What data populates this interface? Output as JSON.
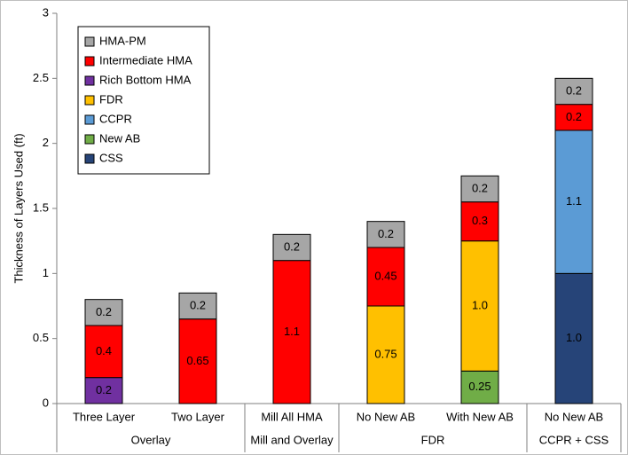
{
  "chart_data": {
    "type": "stacked_bar",
    "y_label": "Thickness of Layers Used (ft)",
    "categories": [
      "Three Layer",
      "Two Layer",
      "Mill All HMA",
      "No New AB",
      "With New AB",
      "No New AB"
    ],
    "category_groups": [
      "Overlay",
      "Overlay",
      "Mill and Overlay",
      "FDR",
      "FDR",
      "CCPR + CSS"
    ],
    "series": [
      {
        "name": "CSS",
        "color": "#264478",
        "values": [
          null,
          null,
          null,
          null,
          null,
          1.0
        ],
        "value_labels": [
          null,
          null,
          null,
          null,
          null,
          "1.0"
        ]
      },
      {
        "name": "New AB",
        "color": "#70ad47",
        "values": [
          null,
          null,
          null,
          null,
          0.25,
          null
        ],
        "value_labels": [
          null,
          null,
          null,
          null,
          "0.25",
          null
        ]
      },
      {
        "name": "CCPR",
        "color": "#5b9bd5",
        "values": [
          null,
          null,
          null,
          null,
          null,
          1.1
        ],
        "value_labels": [
          null,
          null,
          null,
          null,
          null,
          "1.1"
        ]
      },
      {
        "name": "FDR",
        "color": "#ffc000",
        "values": [
          null,
          null,
          null,
          0.75,
          1.0,
          null
        ],
        "value_labels": [
          null,
          null,
          null,
          "0.75",
          "1.0",
          null
        ]
      },
      {
        "name": "Rich Bottom HMA",
        "color": "#7030a0",
        "values": [
          0.2,
          null,
          null,
          null,
          null,
          null
        ],
        "value_labels": [
          "0.2",
          null,
          null,
          null,
          null,
          null
        ]
      },
      {
        "name": "Intermediate HMA",
        "color": "#ff0000",
        "values": [
          0.4,
          0.65,
          1.1,
          0.45,
          0.3,
          0.2
        ],
        "value_labels": [
          "0.4",
          "0.65",
          "1.1",
          "0.45",
          "0.3",
          "0.2"
        ]
      },
      {
        "name": "HMA-PM",
        "color": "#a6a6a6",
        "values": [
          0.2,
          0.2,
          0.2,
          0.2,
          0.2,
          0.2
        ],
        "value_labels": [
          "0.2",
          "0.2",
          "0.2",
          "0.2",
          "0.2",
          "0.2"
        ]
      }
    ],
    "ylim": [
      0,
      3
    ],
    "yticks": [
      0,
      0.5,
      1,
      1.5,
      2,
      2.5,
      3
    ],
    "grid": false,
    "legend": "top-left"
  }
}
